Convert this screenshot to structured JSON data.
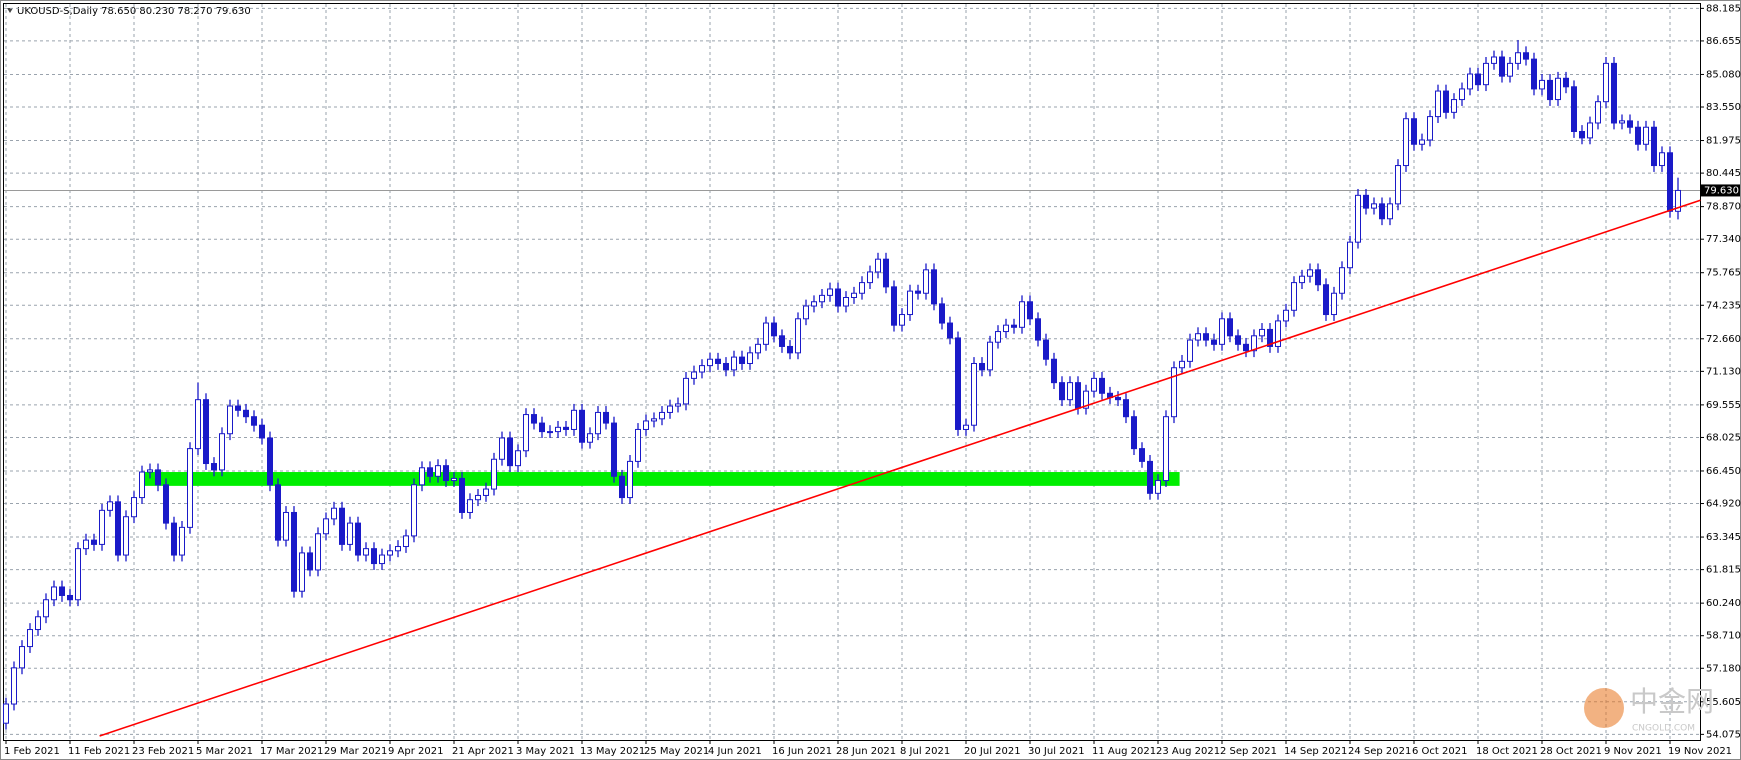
{
  "chart_data": {
    "type": "candlestick",
    "title": "UKOUSD-S,Daily  78.650 80.230 78.270 79.630",
    "categories": [
      "1 Feb 2021",
      null,
      null,
      null,
      null,
      null,
      null,
      null,
      "11 Feb 2021",
      null,
      null,
      null,
      null,
      null,
      null,
      null,
      "23 Feb 2021",
      null,
      null,
      null,
      null,
      null,
      null,
      null,
      "5 Mar 2021",
      null,
      null,
      null,
      null,
      null,
      null,
      null,
      "17 Mar 2021",
      null,
      null,
      null,
      null,
      null,
      null,
      null,
      "29 Mar 2021",
      null,
      null,
      null,
      null,
      null,
      null,
      null,
      "9 Apr 2021",
      null,
      null,
      null,
      null,
      null,
      null,
      null,
      "21 Apr 2021",
      null,
      null,
      null,
      null,
      null,
      null,
      null,
      "3 May 2021",
      null,
      null,
      null,
      null,
      null,
      null,
      null,
      "13 May 2021",
      null,
      null,
      null,
      null,
      null,
      null,
      null,
      "25 May 2021",
      null,
      null,
      null,
      null,
      null,
      null,
      null,
      "4 Jun 2021",
      null,
      null,
      null,
      null,
      null,
      null,
      null,
      "16 Jun 2021",
      null,
      null,
      null,
      null,
      null,
      null,
      null,
      "28 Jun 2021",
      null,
      null,
      null,
      null,
      null,
      null,
      null,
      "8 Jul 2021",
      null,
      null,
      null,
      null,
      null,
      null,
      null,
      "20 Jul 2021",
      null,
      null,
      null,
      null,
      null,
      null,
      null,
      "30 Jul 2021",
      null,
      null,
      null,
      null,
      null,
      null,
      null,
      "11 Aug 2021",
      null,
      null,
      null,
      null,
      null,
      null,
      null,
      "23 Aug 2021",
      null,
      null,
      null,
      null,
      null,
      null,
      null,
      "2 Sep 2021",
      null,
      null,
      null,
      null,
      null,
      null,
      null,
      "14 Sep 2021",
      null,
      null,
      null,
      null,
      null,
      null,
      null,
      "24 Sep 2021",
      null,
      null,
      null,
      null,
      null,
      null,
      null,
      "6 Oct 2021",
      null,
      null,
      null,
      null,
      null,
      null,
      null,
      "18 Oct 2021",
      null,
      null,
      null,
      null,
      null,
      null,
      null,
      "28 Oct 2021",
      null,
      null,
      null,
      null,
      null,
      null,
      null,
      "9 Nov 2021",
      null,
      null,
      null,
      null,
      null,
      null,
      null,
      "19 Nov 2021",
      null
    ],
    "open": [
      54.6,
      55.5,
      57.2,
      58.2,
      59.0,
      59.6,
      60.4,
      61.0,
      60.6,
      60.4,
      62.8,
      63.2,
      63.0,
      64.6,
      65.0,
      62.5,
      64.3,
      65.2,
      66.4,
      66.5,
      65.8,
      64.0,
      62.5,
      63.8,
      67.5,
      69.8,
      66.8,
      66.5,
      68.2,
      69.5,
      69.3,
      69.0,
      68.6,
      68.0,
      65.8,
      63.2,
      64.5,
      60.8,
      62.6,
      61.8,
      63.5,
      64.2,
      64.7,
      63.0,
      64.0,
      62.5,
      62.8,
      62.1,
      62.5,
      62.7,
      62.9,
      63.4,
      65.8,
      66.6,
      66.2,
      66.7,
      66.0,
      66.1,
      64.5,
      65.1,
      65.3,
      65.6,
      67.0,
      68.0,
      66.7,
      67.4,
      69.1,
      68.7,
      68.3,
      68.3,
      68.5,
      68.4,
      69.3,
      67.8,
      68.2,
      69.2,
      68.7,
      66.2,
      65.2,
      66.9,
      68.4,
      68.8,
      68.9,
      69.2,
      69.5,
      69.6,
      70.8,
      71.1,
      71.4,
      71.7,
      71.5,
      71.2,
      71.8,
      71.5,
      72.0,
      72.4,
      73.4,
      72.8,
      72.3,
      72.0,
      73.6,
      74.2,
      74.4,
      74.7,
      75.0,
      74.2,
      74.6,
      74.8,
      75.3,
      75.8,
      76.4,
      75.1,
      73.3,
      73.8,
      74.9,
      74.8,
      75.9,
      74.3,
      73.4,
      72.7,
      68.4,
      68.6,
      71.5,
      71.2,
      72.5,
      73.0,
      73.3,
      73.2,
      74.4,
      73.6,
      72.6,
      71.7,
      70.6,
      69.8,
      70.6,
      69.4,
      70.2,
      70.8,
      70.1,
      69.9,
      69.8,
      69.0,
      67.5,
      66.9,
      65.4,
      66.0,
      69.0,
      71.3,
      71.6,
      72.6,
      72.9,
      72.6,
      72.4,
      73.6,
      72.8,
      72.4,
      72.1,
      72.8,
      73.1,
      72.3,
      73.5,
      74.0,
      75.3,
      75.6,
      75.9,
      75.2,
      73.8,
      74.8,
      76.0,
      77.2,
      79.4,
      78.8,
      79.0,
      78.3,
      79.0,
      80.8,
      83.0,
      81.8,
      82.0,
      83.1,
      84.3,
      83.3,
      83.9,
      84.4,
      85.1,
      84.6,
      85.6,
      85.9,
      85.0,
      85.6,
      86.1,
      85.8,
      84.4,
      84.8,
      83.9,
      84.9,
      84.5,
      82.4,
      82.1,
      82.8,
      83.8,
      85.6,
      82.8,
      82.9,
      82.6,
      81.8,
      82.6,
      80.8,
      81.4,
      78.65
    ],
    "high": [
      55.8,
      57.5,
      58.5,
      59.3,
      59.9,
      60.7,
      61.3,
      61.3,
      60.9,
      63.1,
      63.5,
      63.5,
      64.9,
      65.3,
      65.3,
      64.6,
      65.5,
      66.7,
      66.8,
      66.8,
      66.1,
      64.3,
      64.1,
      67.8,
      70.6,
      70.1,
      67.1,
      68.5,
      69.8,
      69.8,
      69.6,
      69.3,
      68.9,
      68.3,
      66.1,
      64.8,
      64.8,
      62.9,
      62.9,
      63.8,
      64.5,
      65.0,
      65.0,
      64.3,
      64.3,
      63.1,
      63.1,
      62.8,
      63.0,
      63.2,
      63.7,
      66.1,
      66.9,
      66.9,
      67.0,
      67.0,
      66.4,
      66.4,
      65.4,
      65.6,
      65.9,
      67.3,
      68.3,
      68.3,
      67.7,
      69.4,
      69.4,
      69.0,
      68.6,
      68.8,
      68.8,
      69.6,
      69.6,
      68.5,
      69.5,
      69.5,
      69.0,
      66.5,
      67.2,
      68.7,
      69.1,
      69.2,
      69.5,
      69.8,
      69.9,
      71.1,
      71.4,
      71.7,
      72.0,
      72.0,
      71.8,
      72.1,
      72.1,
      72.3,
      72.7,
      73.7,
      73.7,
      73.1,
      72.6,
      73.9,
      74.5,
      74.7,
      75.0,
      75.3,
      75.3,
      74.9,
      75.1,
      75.6,
      76.1,
      76.7,
      76.7,
      75.4,
      74.1,
      75.2,
      75.2,
      76.2,
      76.2,
      74.6,
      73.7,
      73.0,
      68.9,
      71.8,
      71.8,
      72.8,
      73.3,
      73.6,
      73.6,
      74.7,
      74.7,
      73.9,
      72.9,
      72.0,
      70.9,
      70.9,
      70.9,
      70.5,
      71.1,
      71.1,
      70.4,
      70.2,
      70.1,
      69.3,
      67.8,
      67.2,
      66.3,
      69.3,
      71.6,
      71.9,
      72.9,
      73.2,
      73.2,
      72.9,
      73.9,
      73.9,
      73.1,
      72.7,
      73.1,
      73.4,
      73.4,
      73.8,
      74.3,
      75.6,
      75.9,
      76.2,
      76.2,
      75.5,
      75.1,
      76.3,
      77.5,
      79.7,
      79.7,
      79.3,
      79.3,
      79.3,
      81.1,
      83.3,
      83.3,
      82.3,
      83.4,
      84.6,
      84.6,
      84.2,
      84.7,
      85.4,
      85.4,
      85.9,
      86.2,
      86.2,
      85.9,
      86.7,
      86.4,
      86.1,
      85.1,
      85.1,
      85.2,
      85.2,
      84.8,
      82.7,
      83.1,
      84.1,
      85.9,
      85.9,
      83.2,
      83.2,
      82.9,
      82.9,
      82.9,
      81.7,
      81.7,
      80.23
    ],
    "low": [
      54.3,
      55.2,
      56.9,
      57.9,
      58.7,
      59.3,
      60.1,
      60.3,
      60.1,
      60.1,
      62.5,
      62.7,
      62.7,
      64.3,
      62.2,
      62.2,
      64.0,
      64.9,
      66.1,
      65.5,
      63.7,
      62.2,
      62.2,
      63.5,
      67.2,
      66.5,
      66.2,
      66.2,
      67.9,
      69.0,
      68.7,
      68.3,
      67.7,
      65.5,
      62.9,
      62.9,
      60.5,
      60.5,
      61.5,
      61.5,
      63.2,
      63.9,
      62.7,
      62.7,
      62.2,
      62.2,
      61.8,
      61.8,
      62.2,
      62.4,
      62.6,
      63.1,
      65.5,
      65.9,
      65.9,
      65.7,
      65.7,
      64.2,
      64.2,
      64.8,
      65.0,
      65.3,
      66.7,
      66.4,
      66.4,
      67.1,
      68.4,
      68.0,
      68.0,
      68.0,
      68.1,
      68.1,
      67.5,
      67.5,
      67.9,
      68.4,
      65.9,
      64.9,
      64.9,
      66.6,
      68.1,
      68.5,
      68.6,
      68.9,
      69.2,
      69.3,
      70.5,
      70.8,
      71.1,
      71.2,
      70.9,
      70.9,
      71.2,
      71.2,
      71.7,
      72.1,
      72.5,
      72.0,
      71.7,
      71.7,
      73.3,
      73.9,
      74.1,
      74.4,
      73.9,
      73.9,
      74.3,
      74.5,
      75.0,
      75.5,
      74.8,
      73.0,
      73.0,
      73.5,
      74.5,
      74.5,
      74.0,
      73.1,
      72.4,
      68.1,
      68.1,
      68.3,
      70.9,
      70.9,
      72.2,
      72.7,
      72.9,
      72.9,
      73.3,
      72.3,
      71.4,
      70.3,
      69.5,
      69.5,
      69.1,
      69.1,
      69.9,
      69.8,
      69.6,
      69.5,
      68.7,
      67.2,
      66.6,
      65.1,
      65.1,
      65.7,
      68.7,
      71.0,
      71.3,
      72.3,
      72.3,
      72.1,
      72.1,
      72.5,
      72.1,
      71.8,
      71.8,
      72.5,
      72.0,
      72.0,
      73.2,
      73.7,
      75.0,
      75.3,
      74.9,
      73.5,
      73.5,
      74.5,
      75.7,
      76.9,
      78.5,
      78.5,
      78.0,
      78.0,
      78.7,
      80.5,
      81.5,
      81.5,
      81.7,
      82.8,
      83.0,
      83.0,
      83.6,
      84.1,
      84.3,
      84.3,
      85.3,
      84.7,
      84.7,
      85.3,
      85.5,
      84.1,
      84.1,
      83.6,
      83.6,
      84.2,
      82.1,
      81.8,
      81.8,
      82.5,
      83.5,
      82.5,
      82.5,
      82.3,
      81.5,
      81.5,
      80.5,
      80.5,
      78.35,
      78.27
    ],
    "close": [
      55.5,
      57.2,
      58.2,
      59.0,
      59.6,
      60.4,
      61.0,
      60.6,
      60.4,
      62.8,
      63.2,
      63.0,
      64.6,
      65.0,
      62.5,
      64.3,
      65.2,
      66.4,
      66.5,
      65.8,
      64.0,
      62.5,
      63.8,
      67.5,
      69.8,
      66.8,
      66.5,
      68.2,
      69.5,
      69.3,
      69.0,
      68.6,
      68.0,
      65.8,
      63.2,
      64.5,
      60.8,
      62.6,
      61.8,
      63.5,
      64.2,
      64.7,
      63.0,
      64.0,
      62.5,
      62.8,
      62.1,
      62.5,
      62.7,
      62.9,
      63.4,
      65.8,
      66.6,
      66.2,
      66.7,
      66.0,
      66.1,
      64.5,
      65.1,
      65.3,
      65.6,
      67.0,
      68.0,
      66.7,
      67.4,
      69.1,
      68.7,
      68.3,
      68.3,
      68.5,
      68.4,
      69.3,
      67.8,
      68.2,
      69.2,
      68.7,
      66.2,
      65.2,
      66.9,
      68.4,
      68.8,
      68.9,
      69.2,
      69.5,
      69.6,
      70.8,
      71.1,
      71.4,
      71.7,
      71.5,
      71.2,
      71.8,
      71.5,
      72.0,
      72.4,
      73.4,
      72.8,
      72.3,
      72.0,
      73.6,
      74.2,
      74.4,
      74.7,
      75.0,
      74.2,
      74.6,
      74.8,
      75.3,
      75.8,
      76.4,
      75.1,
      73.3,
      73.8,
      74.9,
      74.8,
      75.9,
      74.3,
      73.4,
      72.7,
      68.4,
      68.6,
      71.5,
      71.2,
      72.5,
      73.0,
      73.3,
      73.2,
      74.4,
      73.6,
      72.6,
      71.7,
      70.6,
      69.8,
      70.6,
      69.4,
      70.2,
      70.8,
      70.1,
      69.9,
      69.8,
      69.0,
      67.5,
      66.9,
      65.4,
      66.0,
      69.0,
      71.3,
      71.6,
      72.6,
      72.9,
      72.6,
      72.4,
      73.6,
      72.8,
      72.4,
      72.1,
      72.8,
      73.1,
      72.3,
      73.5,
      74.0,
      75.3,
      75.6,
      75.9,
      75.2,
      73.8,
      74.8,
      76.0,
      77.2,
      79.4,
      78.8,
      79.0,
      78.3,
      79.0,
      80.8,
      83.0,
      81.8,
      82.0,
      83.1,
      84.3,
      83.3,
      83.9,
      84.4,
      85.1,
      84.6,
      85.6,
      85.9,
      85.0,
      85.6,
      86.1,
      85.8,
      84.4,
      84.8,
      83.9,
      84.9,
      84.5,
      82.4,
      82.1,
      82.8,
      83.8,
      85.6,
      82.8,
      82.9,
      82.6,
      81.8,
      82.6,
      80.8,
      81.4,
      78.65,
      79.63
    ],
    "up_color": "#ffffff",
    "down_color": "#1a1ac8",
    "outline_color": "#1a1ac8",
    "ylim": [
      53.81,
      88.39
    ],
    "yticks": [
      88.185,
      86.655,
      {
        "value": 85.08,
        "label": "85.080"
      },
      {
        "value": 83.55,
        "label": "83.550"
      },
      81.975,
      80.445,
      {
        "value": 78.87,
        "label": "78.870"
      },
      {
        "value": 77.34,
        "label": "77.340"
      },
      75.765,
      74.235,
      {
        "value": 72.66,
        "label": "72.660"
      },
      {
        "value": 71.13,
        "label": "71.130"
      },
      69.555,
      68.025,
      {
        "value": 66.45,
        "label": "66.450"
      },
      {
        "value": 64.92,
        "label": "64.920"
      },
      63.345,
      61.815,
      {
        "value": 60.24,
        "label": "60.240"
      },
      {
        "value": 58.71,
        "label": "58.710"
      },
      {
        "value": 57.18,
        "label": "57.180"
      },
      55.605,
      54.075
    ],
    "grid": true,
    "current_price": {
      "value": 79.63,
      "label": "79.630"
    },
    "zone": {
      "x": [
        16.8,
        146.7
      ],
      "y": [
        65.75,
        66.4
      ],
      "color": "#00ee00"
    },
    "trendline": {
      "x": [
        11.7,
        211.8
      ],
      "y": [
        54.0,
        79.17
      ],
      "color": "#ff0000"
    },
    "watermark": {
      "text": "中金网",
      "sub": "CNGOLD.COM"
    }
  }
}
